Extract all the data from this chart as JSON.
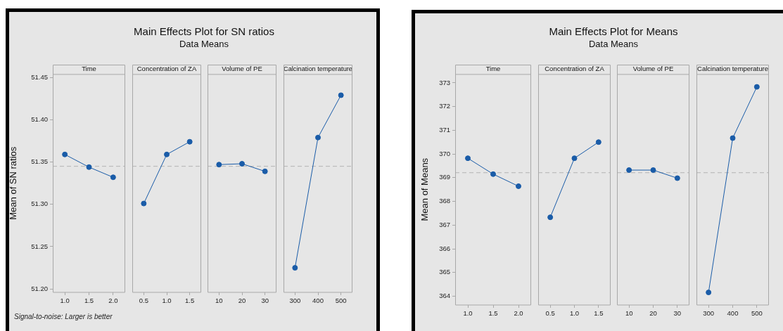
{
  "chart_data": [
    {
      "type": "other",
      "title": "Main Effects Plot for SN ratios",
      "subtitle": "Data Means",
      "annotations": [
        "Signal-to-noise: Larger is better"
      ]
    },
    {
      "type": "line",
      "title": "Time",
      "ylabel": "Mean of SN ratios",
      "categories": [
        "1.0",
        "1.5",
        "2.0"
      ],
      "series": [
        {
          "color": "#1a5ca8",
          "values": [
            51.359,
            51.344,
            51.332
          ]
        }
      ],
      "ylim": [
        51.196,
        51.454
      ],
      "yticks": [
        {
          "value": 51.2,
          "label": "51.20"
        },
        51.25,
        {
          "value": 51.3,
          "label": "51.30"
        },
        51.35,
        {
          "value": 51.4,
          "label": "51.40"
        },
        51.45
      ],
      "marker": "circle",
      "ref_lines": [
        {
          "axis": "y",
          "value": 51.345,
          "color": "#b4b4b4",
          "line_style": "dashed"
        }
      ]
    },
    {
      "type": "line",
      "title": "Concentration of ZA",
      "categories": [
        "0.5",
        "1.0",
        "1.5"
      ],
      "series": [
        {
          "color": "#1a5ca8",
          "values": [
            51.301,
            51.359,
            51.374
          ]
        }
      ],
      "ylim": [
        51.196,
        51.454
      ],
      "marker": "circle",
      "tick_labels": "x",
      "ref_lines": [
        {
          "axis": "y",
          "value": 51.345,
          "color": "#b4b4b4",
          "line_style": "dashed"
        }
      ]
    },
    {
      "type": "line",
      "title": "Volume of PE",
      "categories": [
        "10",
        "20",
        "30"
      ],
      "series": [
        {
          "color": "#1a5ca8",
          "values": [
            51.347,
            51.348,
            51.339
          ]
        }
      ],
      "ylim": [
        51.196,
        51.454
      ],
      "marker": "circle",
      "tick_labels": "x",
      "ref_lines": [
        {
          "axis": "y",
          "value": 51.345,
          "color": "#b4b4b4",
          "line_style": "dashed"
        }
      ]
    },
    {
      "type": "line",
      "title": "Calcination temperature",
      "categories": [
        "300",
        "400",
        "500"
      ],
      "series": [
        {
          "color": "#1a5ca8",
          "values": [
            51.225,
            51.379,
            51.429
          ]
        }
      ],
      "ylim": [
        51.196,
        51.454
      ],
      "marker": "circle",
      "tick_labels": "x",
      "ref_lines": [
        {
          "axis": "y",
          "value": 51.345,
          "color": "#b4b4b4",
          "line_style": "dashed"
        }
      ]
    },
    {
      "type": "other",
      "title": "Main Effects Plot for Means",
      "subtitle": "Data Means"
    },
    {
      "type": "line",
      "title": "Time",
      "ylabel": "Mean of Means",
      "categories": [
        "1.0",
        "1.5",
        "2.0"
      ],
      "series": [
        {
          "color": "#1a5ca8",
          "values": [
            369.82,
            369.15,
            368.64
          ]
        }
      ],
      "ylim": [
        363.63,
        373.37
      ],
      "yticks": [
        364,
        365,
        366,
        367,
        368,
        369,
        370,
        371,
        372,
        373
      ],
      "marker": "circle",
      "ref_lines": [
        {
          "axis": "y",
          "value": 369.21,
          "color": "#b4b4b4",
          "line_style": "dashed"
        }
      ]
    },
    {
      "type": "line",
      "title": "Concentration of ZA",
      "categories": [
        "0.5",
        "1.0",
        "1.5"
      ],
      "series": [
        {
          "color": "#1a5ca8",
          "values": [
            367.33,
            369.82,
            370.5
          ]
        }
      ],
      "ylim": [
        363.63,
        373.37
      ],
      "marker": "circle",
      "tick_labels": "x",
      "ref_lines": [
        {
          "axis": "y",
          "value": 369.21,
          "color": "#b4b4b4",
          "line_style": "dashed"
        }
      ]
    },
    {
      "type": "line",
      "title": "Volume of PE",
      "categories": [
        "10",
        "20",
        "30"
      ],
      "series": [
        {
          "color": "#1a5ca8",
          "values": [
            369.32,
            369.32,
            368.98
          ]
        }
      ],
      "ylim": [
        363.63,
        373.37
      ],
      "marker": "circle",
      "tick_labels": "x",
      "ref_lines": [
        {
          "axis": "y",
          "value": 369.21,
          "color": "#b4b4b4",
          "line_style": "dashed"
        }
      ]
    },
    {
      "type": "line",
      "title": "Calcination temperature",
      "categories": [
        "300",
        "400",
        "500"
      ],
      "series": [
        {
          "color": "#1a5ca8",
          "values": [
            364.16,
            370.67,
            372.83
          ]
        }
      ],
      "ylim": [
        363.63,
        373.37
      ],
      "marker": "circle",
      "tick_labels": "x",
      "ref_lines": [
        {
          "axis": "y",
          "value": 369.21,
          "color": "#b4b4b4",
          "line_style": "dashed"
        }
      ]
    }
  ]
}
